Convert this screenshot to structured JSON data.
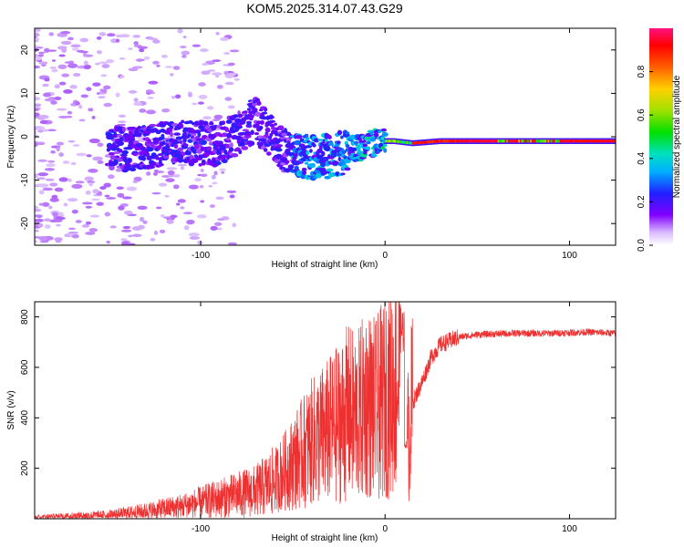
{
  "title": "KOM5.2025.314.07.43.G29",
  "chart_data": [
    {
      "type": "heatmap",
      "description_kind": "spectrogram",
      "xlabel": "Height of straight line (km)",
      "ylabel": "Frequency (Hz)",
      "xlim": [
        -190,
        125
      ],
      "ylim": [
        -25,
        25
      ],
      "xticks": [
        -100,
        0,
        100
      ],
      "yticks": [
        -20,
        -10,
        0,
        10,
        20
      ],
      "colorbar": {
        "label": "Normalized spectral amplitude",
        "range": [
          0,
          1
        ],
        "ticks": [
          "0.0",
          "0.2",
          "0.4",
          "0.6",
          "0.8"
        ]
      },
      "ridge": {
        "x": [
          -190,
          -140,
          -110,
          -90,
          -70,
          -55,
          -40,
          -25,
          -10,
          -2,
          5,
          15,
          30,
          60,
          90,
          125
        ],
        "freq_hz": [
          2,
          -3,
          -1,
          -2,
          4,
          -3,
          -5,
          -4,
          -2,
          -1,
          -1,
          -1.5,
          -1,
          -1,
          -1,
          -1
        ]
      }
    },
    {
      "type": "line",
      "xlabel": "Height of straight line (km)",
      "ylabel": "SNR (v/v)",
      "xlim": [
        -190,
        125
      ],
      "ylim": [
        0,
        860
      ],
      "xticks": [
        -100,
        0,
        100
      ],
      "yticks": [
        200,
        400,
        600,
        800
      ],
      "series": [
        {
          "name": "SNR",
          "color": "#ee3030",
          "x": [
            -190,
            -170,
            -150,
            -130,
            -110,
            -90,
            -70,
            -60,
            -50,
            -40,
            -30,
            -25,
            -20,
            -15,
            -10,
            -5,
            0,
            5,
            8,
            10,
            12,
            15,
            20,
            25,
            30,
            40,
            50,
            70,
            90,
            110,
            125
          ],
          "y": [
            5,
            10,
            15,
            30,
            50,
            80,
            110,
            150,
            220,
            300,
            350,
            380,
            420,
            400,
            460,
            430,
            480,
            540,
            560,
            620,
            300,
            460,
            540,
            640,
            690,
            720,
            730,
            735,
            735,
            740,
            735
          ]
        }
      ]
    }
  ],
  "colors": {
    "line": "#ee3030",
    "frame": "#000000"
  }
}
